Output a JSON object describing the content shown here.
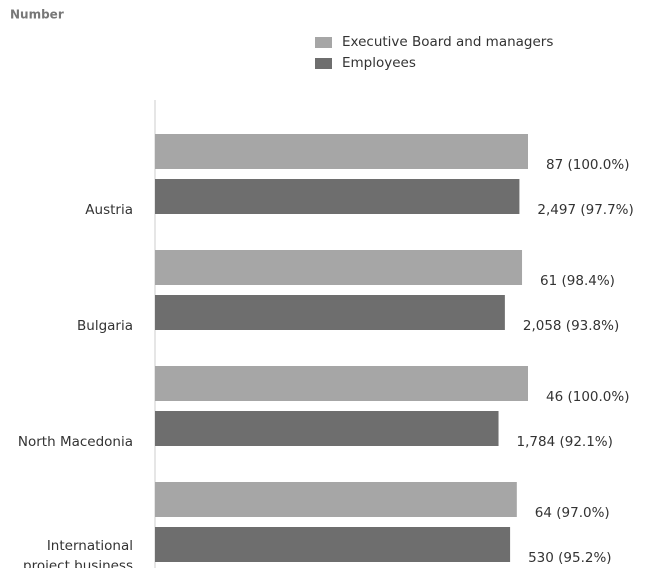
{
  "chart_data": {
    "type": "bar",
    "orientation": "horizontal",
    "subtitle": "Number",
    "categories": [
      "Austria",
      "Bulgaria",
      "North Macedonia",
      "International project business"
    ],
    "series": [
      {
        "name": "Executive Board and managers",
        "color": "#a6a6a6",
        "values": [
          100.0,
          98.4,
          100.0,
          97.0
        ],
        "value_labels": [
          "87 (100.0%)",
          "61 (98.4%)",
          "46 (100.0%)",
          "64 (97.0%)"
        ]
      },
      {
        "name": "Employees",
        "color": "#6e6e6e",
        "values": [
          97.7,
          93.8,
          92.1,
          95.2
        ],
        "value_labels": [
          "2,497 (97.7%)",
          "2,058 (93.8%)",
          "1,784 (92.1%)",
          "530 (95.2%)"
        ]
      }
    ],
    "xlim": [
      0,
      100
    ],
    "legend": "top"
  }
}
